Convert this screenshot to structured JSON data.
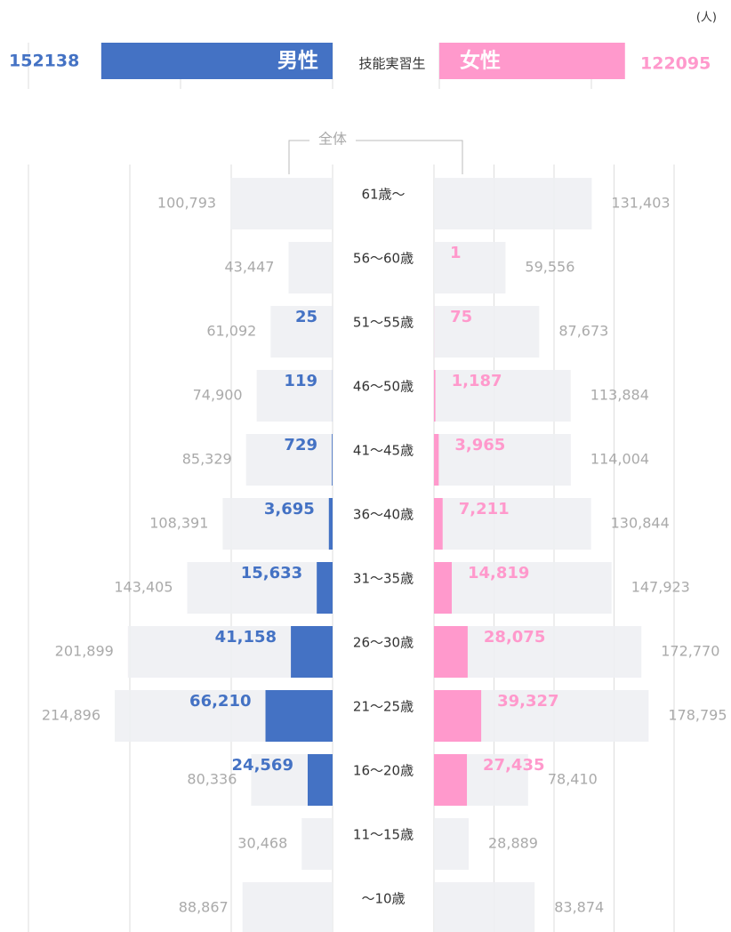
{
  "chart_data": {
    "type": "pyramid",
    "unit": "(人)",
    "total_label": "全体",
    "summary": {
      "label": "技能実習生",
      "xlim": [
        0,
        200000
      ],
      "male": {
        "name": "男性",
        "value": 152138,
        "color": "#4472c4",
        "xticks": [
          0,
          100000,
          200000
        ]
      },
      "female": {
        "name": "女性",
        "value": 122095,
        "color": "#ff99cc",
        "xticks": [
          0,
          100000
        ]
      }
    },
    "categories": [
      "61歳〜",
      "56〜60歳",
      "51〜55歳",
      "46〜50歳",
      "41〜45歳",
      "36〜40歳",
      "31〜35歳",
      "26〜30歳",
      "21〜25歳",
      "16〜20歳",
      "11〜15歳",
      "〜10歳"
    ],
    "grid_color": "#dddddd",
    "male": {
      "xlim": [
        0,
        300000
      ],
      "xticks": [
        0,
        100000,
        200000,
        300000
      ],
      "total": {
        "color": "#eeeff3",
        "values": [
          100793,
          43447,
          61092,
          74900,
          85329,
          108391,
          143405,
          201899,
          214896,
          80336,
          30468,
          88867
        ],
        "value_labels": [
          "100,793",
          "43,447",
          "61,092",
          "74,900",
          "85,329",
          "108,391",
          "143,405",
          "201,899",
          "214,896",
          "80,336",
          "30,468",
          "88,867"
        ]
      },
      "trainee": {
        "color": "#4472c4",
        "values": [
          null,
          null,
          25,
          119,
          729,
          3695,
          15633,
          41158,
          66210,
          24569,
          null,
          null
        ],
        "value_labels": [
          null,
          null,
          "25",
          "119",
          "729",
          "3,695",
          "15,633",
          "41,158",
          "66,210",
          "24,569",
          null,
          null
        ]
      }
    },
    "female": {
      "xlim": [
        0,
        200000
      ],
      "xticks": [
        0,
        50000,
        100000,
        150000,
        200000
      ],
      "total": {
        "color": "#eeeff3",
        "values": [
          131403,
          59556,
          87673,
          113884,
          114004,
          130844,
          147923,
          172770,
          178795,
          78410,
          28889,
          83874
        ],
        "value_labels": [
          "131,403",
          "59,556",
          "87,673",
          "113,884",
          "114,004",
          "130,844",
          "147,923",
          "172,770",
          "178,795",
          "78,410",
          "28,889",
          "83,874"
        ]
      },
      "trainee": {
        "color": "#ff99cc",
        "values": [
          null,
          1,
          75,
          1187,
          3965,
          7211,
          14819,
          28075,
          39327,
          27435,
          null,
          null
        ],
        "value_labels": [
          null,
          "1",
          "75",
          "1,187",
          "3,965",
          "7,211",
          "14,819",
          "28,075",
          "39,327",
          "27,435",
          null,
          null
        ]
      }
    }
  }
}
